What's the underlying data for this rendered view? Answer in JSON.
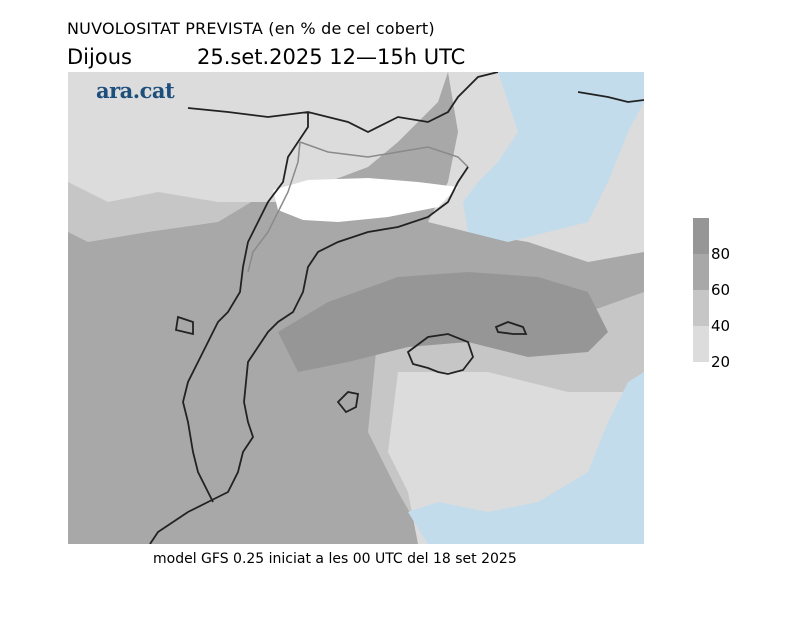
{
  "header": {
    "title": "NUVOLOSITAT PREVISTA (en % de cel cobert)",
    "day": "Dijous",
    "date_time": "25.set.2025 12—15h UTC"
  },
  "map": {
    "brand_logo": "ara.cat",
    "colors": {
      "sea_clear": "#c2dcec",
      "cloud_0_20": "#ffffff",
      "cloud_20_40": "#dcdcdc",
      "cloud_40_60": "#c6c6c6",
      "cloud_60_80": "#a8a8a8",
      "cloud_80_100": "#969696",
      "coastline": "#222222",
      "borders": "#8a8a8a"
    }
  },
  "legend": {
    "labels": [
      "80",
      "60",
      "40",
      "20"
    ],
    "colors": [
      "#969696",
      "#a8a8a8",
      "#c6c6c6",
      "#dcdcdc"
    ]
  },
  "footer": {
    "text": "model GFS 0.25 iniciat a les 00 UTC del 18 set 2025"
  }
}
